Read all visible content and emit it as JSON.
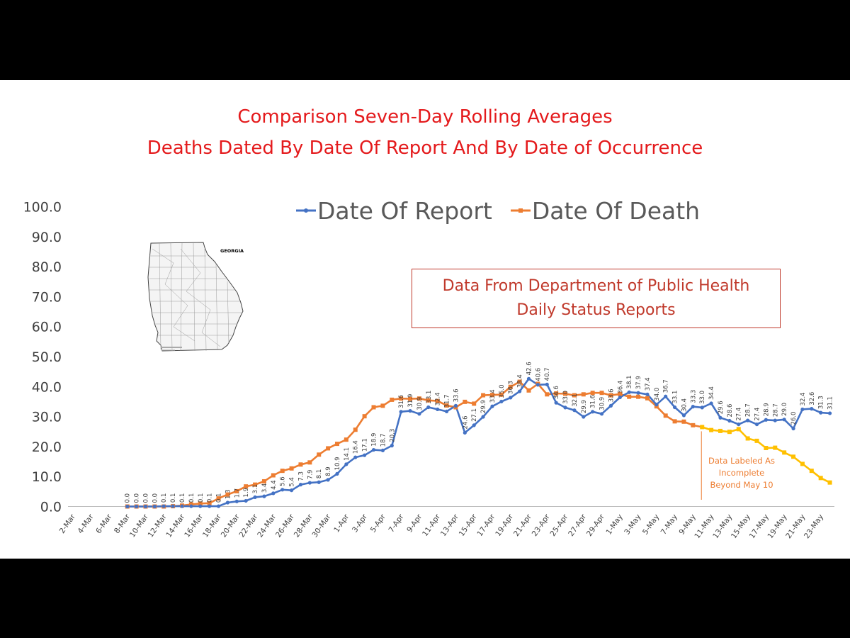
{
  "chart_data": {
    "type": "line",
    "title": "Comparison Seven-Day Rolling Averages",
    "subtitle": "Deaths Dated By Date Of Report And By Date of Occurrence",
    "ylim": [
      0,
      100
    ],
    "y_ticks": [
      "0.0",
      "10.0",
      "20.0",
      "30.0",
      "40.0",
      "50.0",
      "60.0",
      "70.0",
      "80.0",
      "90.0",
      "100.0"
    ],
    "x_tick_labels": [
      "2-Mar",
      "4-Mar",
      "6-Mar",
      "8-Mar",
      "10-Mar",
      "12-Mar",
      "14-Mar",
      "16-Mar",
      "18-Mar",
      "20-Mar",
      "22-Mar",
      "24-Mar",
      "26-Mar",
      "28-Mar",
      "30-Mar",
      "1-Apr",
      "3-Apr",
      "5-Apr",
      "7-Apr",
      "9-Apr",
      "11-Apr",
      "13-Apr",
      "15-Apr",
      "17-Apr",
      "19-Apr",
      "21-Apr",
      "23-Apr",
      "25-Apr",
      "27-Apr",
      "29-Apr",
      "1-May",
      "3-May",
      "5-May",
      "7-May",
      "9-May",
      "11-May",
      "13-May",
      "15-May",
      "17-May",
      "19-May",
      "21-May",
      "23-May"
    ],
    "x": [
      "2-Mar",
      "3-Mar",
      "4-Mar",
      "5-Mar",
      "6-Mar",
      "7-Mar",
      "8-Mar",
      "9-Mar",
      "10-Mar",
      "11-Mar",
      "12-Mar",
      "13-Mar",
      "14-Mar",
      "15-Mar",
      "16-Mar",
      "17-Mar",
      "18-Mar",
      "19-Mar",
      "20-Mar",
      "21-Mar",
      "22-Mar",
      "23-Mar",
      "24-Mar",
      "25-Mar",
      "26-Mar",
      "27-Mar",
      "28-Mar",
      "29-Mar",
      "30-Mar",
      "31-Mar",
      "1-Apr",
      "2-Apr",
      "3-Apr",
      "4-Apr",
      "5-Apr",
      "6-Apr",
      "7-Apr",
      "8-Apr",
      "9-Apr",
      "10-Apr",
      "11-Apr",
      "12-Apr",
      "13-Apr",
      "14-Apr",
      "15-Apr",
      "16-Apr",
      "17-Apr",
      "18-Apr",
      "19-Apr",
      "20-Apr",
      "21-Apr",
      "22-Apr",
      "23-Apr",
      "24-Apr",
      "25-Apr",
      "26-Apr",
      "27-Apr",
      "28-Apr",
      "29-Apr",
      "30-Apr",
      "1-May",
      "2-May",
      "3-May",
      "4-May",
      "5-May",
      "6-May",
      "7-May",
      "8-May",
      "9-May",
      "10-May",
      "11-May",
      "12-May",
      "13-May",
      "14-May",
      "15-May",
      "16-May",
      "17-May",
      "18-May",
      "19-May",
      "20-May",
      "21-May",
      "22-May",
      "23-May",
      "24-May"
    ],
    "series": [
      {
        "name": "Date Of Report",
        "color": "#4472c4",
        "values": [
          null,
          null,
          null,
          null,
          null,
          null,
          0.0,
          0.0,
          0.0,
          0.0,
          0.1,
          0.1,
          0.1,
          0.1,
          0.1,
          0.1,
          0.1,
          1.3,
          1.7,
          1.9,
          3.1,
          3.4,
          4.4,
          5.6,
          5.4,
          7.3,
          7.9,
          8.1,
          8.9,
          10.9,
          14.1,
          16.4,
          17.1,
          18.9,
          18.7,
          20.3,
          31.6,
          31.9,
          30.9,
          33.1,
          32.4,
          31.7,
          33.6,
          24.6,
          27.1,
          29.9,
          33.4,
          35.0,
          36.3,
          38.4,
          42.6,
          40.6,
          40.7,
          34.6,
          33.0,
          32.1,
          29.9,
          31.6,
          30.9,
          33.6,
          36.4,
          38.1,
          37.9,
          37.4,
          34.0,
          36.7,
          33.1,
          30.4,
          33.3,
          33.0,
          34.4,
          29.6,
          28.6,
          27.4,
          28.7,
          27.4,
          28.9,
          28.7,
          29.0,
          26.0,
          32.4,
          32.6,
          31.3,
          31.1
        ],
        "labels": [
          "",
          "",
          "",
          "",
          "",
          "",
          "0.0",
          "0.0",
          "0.0",
          "0.0",
          "0.1",
          "0.1",
          "0.1",
          "0.1",
          "0.1",
          "0.1",
          "0.1",
          "1.3",
          "1.7",
          "1.9",
          "3.1",
          "3.4",
          "4.4",
          "5.6",
          "5.4",
          "7.3",
          "7.9",
          "8.1",
          "8.9",
          "10.9",
          "14.1",
          "16.4",
          "17.1",
          "18.9",
          "18.7",
          "20.3",
          "31.6",
          "31.9",
          "30.9",
          "33.1",
          "32.4",
          "31.7",
          "33.6",
          "24.6",
          "27.1",
          "29.9",
          "33.4",
          "35.0",
          "36.3",
          "38.4",
          "42.6",
          "40.6",
          "40.7",
          "34.6",
          "33.0",
          "32.1",
          "29.9",
          "31.6",
          "30.9",
          "33.6",
          "36.4",
          "38.1",
          "37.9",
          "37.4",
          "34.0",
          "36.7",
          "33.1",
          "30.4",
          "33.3",
          "33.0",
          "34.4",
          "29.6",
          "28.6",
          "27.4",
          "28.7",
          "27.4",
          "28.9",
          "28.7",
          "29.0",
          "26.0",
          "32.4",
          "32.6",
          "31.3",
          "31.1"
        ]
      },
      {
        "name": "Date Of Death",
        "color": "#ed7d31",
        "color_incomplete": "#ffc000",
        "incomplete_from": "10-May",
        "values": [
          null,
          null,
          null,
          null,
          null,
          null,
          0.0,
          0.0,
          0.0,
          0.0,
          0.0,
          0.1,
          0.3,
          0.7,
          1.0,
          1.1,
          2.7,
          4.0,
          5.1,
          6.7,
          7.3,
          8.4,
          10.4,
          11.9,
          12.7,
          14.0,
          14.7,
          17.3,
          19.4,
          20.9,
          22.3,
          25.6,
          30.1,
          33.1,
          33.6,
          35.6,
          36.0,
          35.9,
          36.0,
          35.4,
          35.2,
          33.7,
          33.1,
          34.9,
          34.3,
          37.1,
          37.2,
          37.3,
          39.9,
          41.6,
          38.7,
          40.9,
          37.4,
          37.7,
          37.6,
          37.1,
          37.4,
          37.9,
          37.9,
          37.1,
          37.5,
          36.6,
          36.6,
          36.1,
          33.4,
          30.3,
          28.4,
          28.3,
          27.1,
          26.5,
          25.5,
          25.2,
          24.9,
          25.8,
          22.7,
          21.9,
          19.5,
          19.6,
          18.0,
          16.6,
          14.2,
          11.9,
          9.5,
          8.0
        ]
      }
    ],
    "annotation": [
      "Data Labeled As",
      "Incomplete",
      "Beyond May 10"
    ]
  },
  "legend": {
    "report": "Date Of Report",
    "death": "Date Of Death"
  },
  "source_box": {
    "line1": "Data From Department of Public Health",
    "line2": "Daily Status Reports"
  },
  "map": {
    "label": "GEORGIA"
  }
}
